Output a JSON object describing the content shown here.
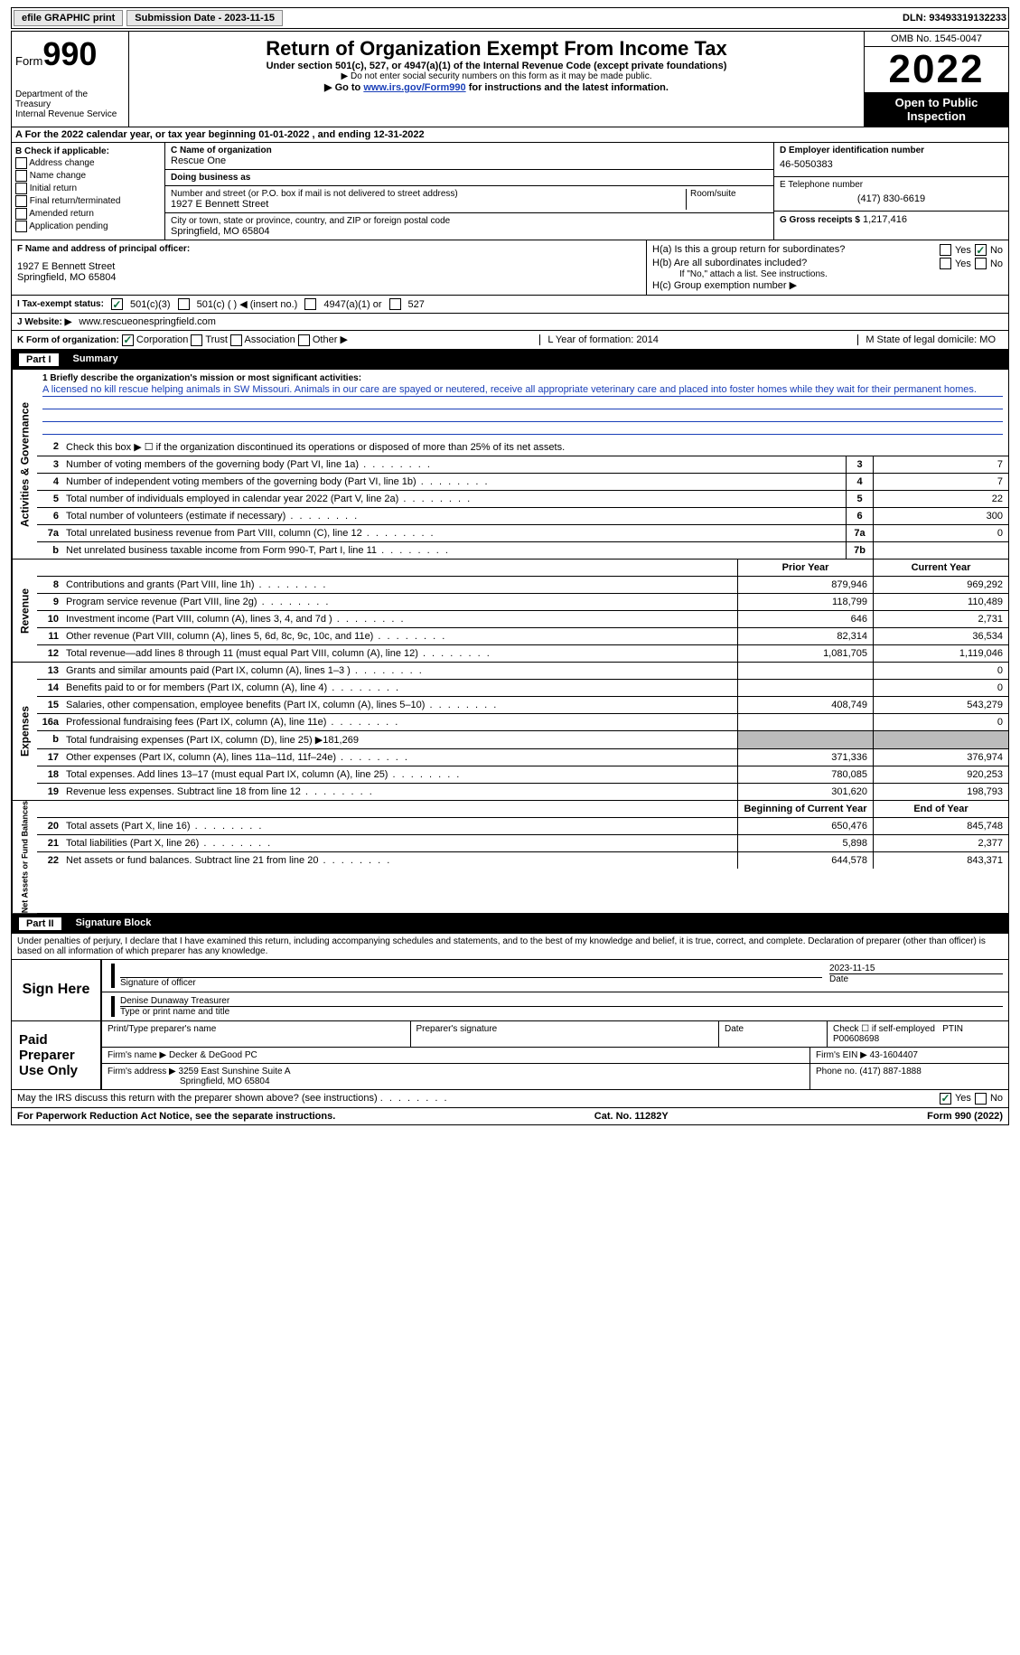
{
  "toolbar": {
    "efile": "efile GRAPHIC print",
    "submission_label": "Submission Date - 2023-11-15",
    "dln_label": "DLN: 93493319132233"
  },
  "header": {
    "form_word": "Form",
    "form_num": "990",
    "dept": "Department of the Treasury",
    "irs": "Internal Revenue Service",
    "title": "Return of Organization Exempt From Income Tax",
    "sub1": "Under section 501(c), 527, or 4947(a)(1) of the Internal Revenue Code (except private foundations)",
    "sub2": "▶ Do not enter social security numbers on this form as it may be made public.",
    "sub3_pre": "▶ Go to ",
    "sub3_link": "www.irs.gov/Form990",
    "sub3_post": " for instructions and the latest information.",
    "omb": "OMB No. 1545-0047",
    "year": "2022",
    "inspect": "Open to Public Inspection"
  },
  "rowA": "A For the 2022 calendar year, or tax year beginning 01-01-2022    , and ending 12-31-2022",
  "colB": {
    "hdr": "B Check if applicable:",
    "opts": [
      "Address change",
      "Name change",
      "Initial return",
      "Final return/terminated",
      "Amended return",
      "Application pending"
    ]
  },
  "org": {
    "name_lbl": "C Name of organization",
    "name": "Rescue One",
    "dba_lbl": "Doing business as",
    "dba": "",
    "street_lbl": "Number and street (or P.O. box if mail is not delivered to street address)",
    "room_lbl": "Room/suite",
    "street": "1927 E Bennett Street",
    "city_lbl": "City or town, state or province, country, and ZIP or foreign postal code",
    "city": "Springfield, MO  65804"
  },
  "right": {
    "ein_lbl": "D Employer identification number",
    "ein": "46-5050383",
    "phone_lbl": "E Telephone number",
    "phone": "(417) 830-6619",
    "gross_lbl": "G Gross receipts $",
    "gross": "1,217,416"
  },
  "officer": {
    "lbl": "F Name and address of principal officer:",
    "line1": "1927 E Bennett Street",
    "line2": "Springfield, MO  65804"
  },
  "ha": {
    "label": "H(a)  Is this a group return for subordinates?",
    "hb": "H(b)  Are all subordinates included?",
    "hb_note": "If \"No,\" attach a list. See instructions.",
    "hc": "H(c)  Group exemption number ▶"
  },
  "status": {
    "lbl": "I   Tax-exempt status:",
    "o1": "501(c)(3)",
    "o2": "501(c) (  ) ◀ (insert no.)",
    "o3": "4947(a)(1) or",
    "o4": "527"
  },
  "website": {
    "lbl": "J   Website: ▶",
    "val": "www.rescueonespringfield.com"
  },
  "formK": {
    "lbl": "K Form of organization:",
    "o1": "Corporation",
    "o2": "Trust",
    "o3": "Association",
    "o4": "Other ▶",
    "L": "L Year of formation: 2014",
    "M": "M State of legal domicile: MO"
  },
  "part1": {
    "num": "Part I",
    "title": "Summary"
  },
  "mission": {
    "lbl": "1  Briefly describe the organization's mission or most significant activities:",
    "text": "A licensed no kill rescue helping animals in SW Missouri. Animals in our care are spayed or neutered, receive all appropriate veterinary care and placed into foster homes while they wait for their permanent homes."
  },
  "line2": "Check this box ▶ ☐ if the organization discontinued its operations or disposed of more than 25% of its net assets.",
  "gov_lines": [
    {
      "n": "3",
      "t": "Number of voting members of the governing body (Part VI, line 1a)",
      "b": "3",
      "v": "7"
    },
    {
      "n": "4",
      "t": "Number of independent voting members of the governing body (Part VI, line 1b)",
      "b": "4",
      "v": "7"
    },
    {
      "n": "5",
      "t": "Total number of individuals employed in calendar year 2022 (Part V, line 2a)",
      "b": "5",
      "v": "22"
    },
    {
      "n": "6",
      "t": "Total number of volunteers (estimate if necessary)",
      "b": "6",
      "v": "300"
    },
    {
      "n": "7a",
      "t": "Total unrelated business revenue from Part VIII, column (C), line 12",
      "b": "7a",
      "v": "0"
    },
    {
      "n": "b",
      "t": "Net unrelated business taxable income from Form 990-T, Part I, line 11",
      "b": "7b",
      "v": ""
    }
  ],
  "vtabs": {
    "gov": "Activities & Governance",
    "rev": "Revenue",
    "exp": "Expenses",
    "net": "Net Assets or Fund Balances"
  },
  "col_hdrs": {
    "prior": "Prior Year",
    "curr": "Current Year",
    "beg": "Beginning of Current Year",
    "end": "End of Year"
  },
  "rev_lines": [
    {
      "n": "8",
      "t": "Contributions and grants (Part VIII, line 1h)",
      "p": "879,946",
      "c": "969,292"
    },
    {
      "n": "9",
      "t": "Program service revenue (Part VIII, line 2g)",
      "p": "118,799",
      "c": "110,489"
    },
    {
      "n": "10",
      "t": "Investment income (Part VIII, column (A), lines 3, 4, and 7d )",
      "p": "646",
      "c": "2,731"
    },
    {
      "n": "11",
      "t": "Other revenue (Part VIII, column (A), lines 5, 6d, 8c, 9c, 10c, and 11e)",
      "p": "82,314",
      "c": "36,534"
    },
    {
      "n": "12",
      "t": "Total revenue—add lines 8 through 11 (must equal Part VIII, column (A), line 12)",
      "p": "1,081,705",
      "c": "1,119,046"
    }
  ],
  "exp_lines": [
    {
      "n": "13",
      "t": "Grants and similar amounts paid (Part IX, column (A), lines 1–3 )",
      "p": "",
      "c": "0"
    },
    {
      "n": "14",
      "t": "Benefits paid to or for members (Part IX, column (A), line 4)",
      "p": "",
      "c": "0"
    },
    {
      "n": "15",
      "t": "Salaries, other compensation, employee benefits (Part IX, column (A), lines 5–10)",
      "p": "408,749",
      "c": "543,279"
    },
    {
      "n": "16a",
      "t": "Professional fundraising fees (Part IX, column (A), line 11e)",
      "p": "",
      "c": "0"
    },
    {
      "n": "b",
      "t": "Total fundraising expenses (Part IX, column (D), line 25) ▶181,269",
      "grey": true
    },
    {
      "n": "17",
      "t": "Other expenses (Part IX, column (A), lines 11a–11d, 11f–24e)",
      "p": "371,336",
      "c": "376,974"
    },
    {
      "n": "18",
      "t": "Total expenses. Add lines 13–17 (must equal Part IX, column (A), line 25)",
      "p": "780,085",
      "c": "920,253"
    },
    {
      "n": "19",
      "t": "Revenue less expenses. Subtract line 18 from line 12",
      "p": "301,620",
      "c": "198,793"
    }
  ],
  "net_lines": [
    {
      "n": "20",
      "t": "Total assets (Part X, line 16)",
      "p": "650,476",
      "c": "845,748"
    },
    {
      "n": "21",
      "t": "Total liabilities (Part X, line 26)",
      "p": "5,898",
      "c": "2,377"
    },
    {
      "n": "22",
      "t": "Net assets or fund balances. Subtract line 21 from line 20",
      "p": "644,578",
      "c": "843,371"
    }
  ],
  "part2": {
    "num": "Part II",
    "title": "Signature Block"
  },
  "penalty": "Under penalties of perjury, I declare that I have examined this return, including accompanying schedules and statements, and to the best of my knowledge and belief, it is true, correct, and complete. Declaration of preparer (other than officer) is based on all information of which preparer has any knowledge.",
  "sign": {
    "here": "Sign Here",
    "sig_lbl": "Signature of officer",
    "date_lbl": "Date",
    "date": "2023-11-15",
    "name": "Denise Dunaway  Treasurer",
    "name_lbl": "Type or print name and title"
  },
  "prep": {
    "here": "Paid Preparer Use Only",
    "name_lbl": "Print/Type preparer's name",
    "sig_lbl": "Preparer's signature",
    "date_lbl": "Date",
    "self_lbl": "Check ☐ if self-employed",
    "ptin_lbl": "PTIN",
    "ptin": "P00608698",
    "firm_lbl": "Firm's name    ▶",
    "firm": "Decker & DeGood PC",
    "ein_lbl": "Firm's EIN ▶",
    "ein": "43-1604407",
    "addr_lbl": "Firm's address ▶",
    "addr1": "3259 East Sunshine Suite A",
    "addr2": "Springfield, MO  65804",
    "phone_lbl": "Phone no.",
    "phone": "(417) 887-1888"
  },
  "discuss": "May the IRS discuss this return with the preparer shown above? (see instructions)",
  "footer": {
    "pra": "For Paperwork Reduction Act Notice, see the separate instructions.",
    "cat": "Cat. No. 11282Y",
    "form": "Form 990 (2022)"
  }
}
